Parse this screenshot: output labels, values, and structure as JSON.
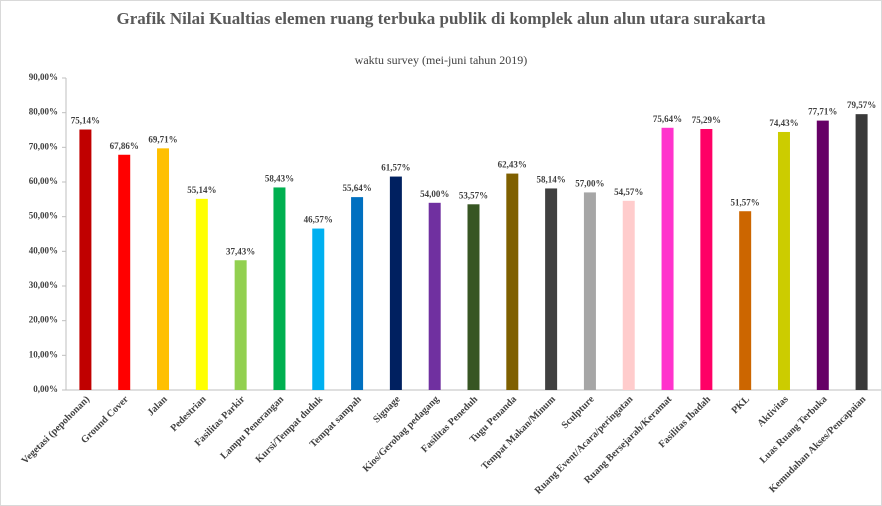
{
  "chart_data": {
    "type": "bar",
    "title": "Grafik  Nilai Kualtias elemen ruang terbuka publik di komplek alun alun utara surakarta",
    "subtitle": "waktu survey (mei-juni tahun 2019)",
    "categories": [
      "Vegetasi (pepohonan)",
      "Ground Cover",
      "Jalan",
      "Pedestrian",
      "Fasilitas Parkir",
      "Lampu Penerangan",
      "Kursi/Tempat duduk",
      "Tempat sampah",
      "Signage",
      "Kios/Gerobag pedagang",
      "Fasilitas Peneduh",
      "Tugu Penanda",
      "Tempat Makan/Minum",
      "Sculpture",
      "Ruang Event/Acara/peringatan",
      "Ruang Bersejarah/Keramat",
      "Fasilitas Ibadah",
      "PKL",
      "Aktivitas",
      "Luas Ruang Terbuka",
      "Kemudahan Akses/Pencapaian"
    ],
    "values": [
      75.14,
      67.86,
      69.71,
      55.14,
      37.43,
      58.43,
      46.57,
      55.64,
      61.57,
      54.0,
      53.57,
      62.43,
      58.14,
      57.0,
      54.57,
      75.64,
      75.29,
      51.57,
      74.43,
      77.71,
      79.57
    ],
    "value_labels": [
      "75,14%",
      "67,86%",
      "69,71%",
      "55,14%",
      "37,43%",
      "58,43%",
      "46,57%",
      "55,64%",
      "61,57%",
      "54,00%",
      "53,57%",
      "62,43%",
      "58,14%",
      "57,00%",
      "54,57%",
      "75,64%",
      "75,29%",
      "51,57%",
      "74,43%",
      "77,71%",
      "79,57%"
    ],
    "colors": [
      "#c00000",
      "#ff0000",
      "#ffc000",
      "#ffff00",
      "#92d050",
      "#00b050",
      "#00b0f0",
      "#0070c0",
      "#002060",
      "#7030a0",
      "#375623",
      "#7f6000",
      "#404040",
      "#a6a6a6",
      "#ffcccc",
      "#ff33cc",
      "#ff0066",
      "#cc6600",
      "#cccc00",
      "#660066",
      "#3a3a3a"
    ],
    "ylim": [
      0,
      90
    ],
    "yticks": [
      {
        "value": 0,
        "label": "0,00%"
      },
      {
        "value": 10,
        "label": "10,00%"
      },
      {
        "value": 20,
        "label": "20,00%"
      },
      {
        "value": 30,
        "label": "30,00%"
      },
      {
        "value": 40,
        "label": "40,00%"
      },
      {
        "value": 50,
        "label": "50,00%"
      },
      {
        "value": 60,
        "label": "60,00%"
      },
      {
        "value": 70,
        "label": "70,00%"
      },
      {
        "value": 80,
        "label": "80,00%"
      },
      {
        "value": 90,
        "label": "90,00%"
      }
    ],
    "grid": false
  }
}
